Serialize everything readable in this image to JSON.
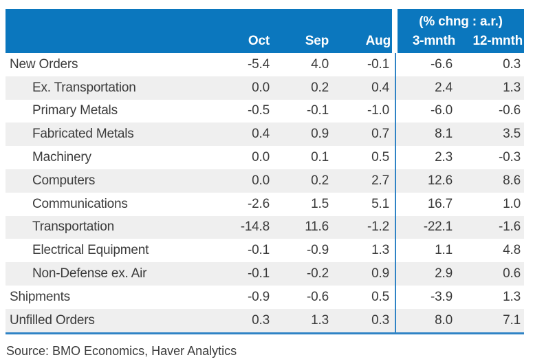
{
  "chart_data": {
    "type": "table",
    "header": {
      "months": [
        "Oct",
        "Sep",
        "Aug"
      ],
      "group_label": "(% chng : a.r.)",
      "periods": [
        "3-mnth",
        "12-mnth"
      ]
    },
    "columns": [
      "",
      "Oct",
      "Sep",
      "Aug",
      "3-mnth",
      "12-mnth"
    ],
    "rows": [
      {
        "label": "New Orders",
        "indent": false,
        "values": [
          "-5.4",
          "4.0",
          "-0.1",
          "-6.6",
          "0.3"
        ]
      },
      {
        "label": "Ex. Transportation",
        "indent": true,
        "values": [
          "0.0",
          "0.2",
          "0.4",
          "2.4",
          "1.3"
        ]
      },
      {
        "label": "Primary Metals",
        "indent": true,
        "values": [
          "-0.5",
          "-0.1",
          "-1.0",
          "-6.0",
          "-0.6"
        ]
      },
      {
        "label": "Fabricated Metals",
        "indent": true,
        "values": [
          "0.4",
          "0.9",
          "0.7",
          "8.1",
          "3.5"
        ]
      },
      {
        "label": "Machinery",
        "indent": true,
        "values": [
          "0.0",
          "0.1",
          "0.5",
          "2.3",
          "-0.3"
        ]
      },
      {
        "label": "Computers",
        "indent": true,
        "values": [
          "0.0",
          "0.2",
          "2.7",
          "12.6",
          "8.6"
        ]
      },
      {
        "label": "Communications",
        "indent": true,
        "values": [
          "-2.6",
          "1.5",
          "5.1",
          "16.7",
          "1.0"
        ]
      },
      {
        "label": "Transportation",
        "indent": true,
        "values": [
          "-14.8",
          "11.6",
          "-1.2",
          "-22.1",
          "-1.6"
        ]
      },
      {
        "label": "Electrical Equipment",
        "indent": true,
        "values": [
          "-0.1",
          "-0.9",
          "1.3",
          "1.1",
          "4.8"
        ]
      },
      {
        "label": "Non-Defense ex. Air",
        "indent": true,
        "values": [
          "-0.1",
          "-0.2",
          "0.9",
          "2.9",
          "0.6"
        ]
      },
      {
        "label": "Shipments",
        "indent": false,
        "values": [
          "-0.9",
          "-0.6",
          "0.5",
          "-3.9",
          "1.3"
        ]
      },
      {
        "label": "Unfilled Orders",
        "indent": false,
        "values": [
          "0.3",
          "1.3",
          "0.3",
          "8.0",
          "7.1"
        ]
      }
    ],
    "source": "Source: BMO Economics, Haver Analytics"
  },
  "colors": {
    "header_bg": "#0b77be",
    "header_text": "#ffffff",
    "divider_line": "#2f83c5",
    "bottom_border": "#2f83c5",
    "row_alt_bg": "#efefef",
    "row_bg": "#ffffff",
    "body_text": "#3b3b3b"
  }
}
